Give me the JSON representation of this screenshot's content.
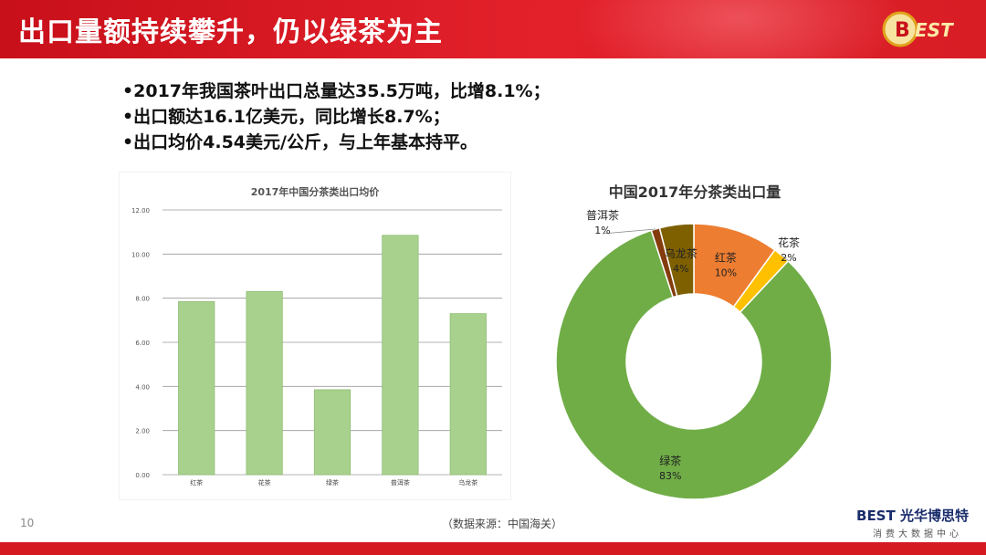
{
  "header": {
    "title": "出口量额持续攀升，仍以绿茶为主"
  },
  "bullets": [
    "•2017年我国茶叶出口总量达35.5万吨，比增8.1%；",
    "•出口额达16.1亿美元，同比增长8.7%；",
    "•出口均价4.54美元/公斤，与上年基本持平。"
  ],
  "colors": {
    "accent": "#d51a22",
    "bar": "#a9d18e",
    "green_tea": "#70ad47",
    "black_tea": "#ed7d31",
    "flower_tea": "#ffc000",
    "oolong": "#7f6000",
    "puer": "#843c0c"
  },
  "chart_data": [
    {
      "type": "bar",
      "title": "2017年中国分茶类出口均价",
      "categories": [
        "红茶",
        "花茶",
        "绿茶",
        "普洱茶",
        "乌龙茶"
      ],
      "values": [
        7.85,
        8.3,
        3.85,
        10.85,
        7.3
      ],
      "ylim": [
        0,
        12
      ],
      "yticks": [
        "0.00",
        "2.00",
        "4.00",
        "6.00",
        "8.00",
        "10.00",
        "12.00"
      ],
      "grid": true
    },
    {
      "type": "pie",
      "title": "中国2017年分茶类出口量",
      "labels": [
        "红茶",
        "花茶",
        "绿茶",
        "普洱茶",
        "乌龙茶"
      ],
      "values": [
        10,
        2,
        83,
        1,
        4
      ],
      "value_labels": [
        "10%",
        "2%",
        "83%",
        "1%",
        "4%"
      ]
    }
  ],
  "footer": {
    "page": "10",
    "source": "（数据来源：中国海关）",
    "brand_b": "B",
    "brand_name": "EST 光华博思特",
    "brand_sub": "消费大数据中心"
  },
  "logo_text": "BEST"
}
